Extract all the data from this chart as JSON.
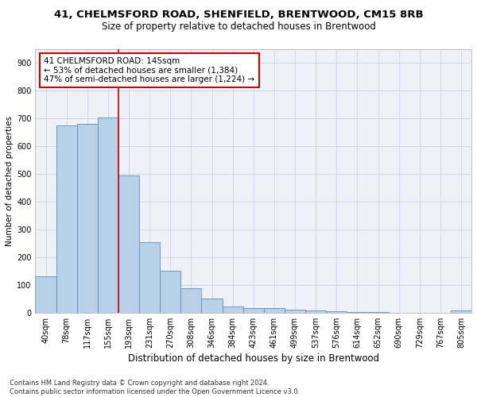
{
  "title_line1": "41, CHELMSFORD ROAD, SHENFIELD, BRENTWOOD, CM15 8RB",
  "title_line2": "Size of property relative to detached houses in Brentwood",
  "xlabel": "Distribution of detached houses by size in Brentwood",
  "ylabel": "Number of detached properties",
  "footer_line1": "Contains HM Land Registry data © Crown copyright and database right 2024.",
  "footer_line2": "Contains public sector information licensed under the Open Government Licence v3.0.",
  "bin_labels": [
    "40sqm",
    "78sqm",
    "117sqm",
    "155sqm",
    "193sqm",
    "231sqm",
    "270sqm",
    "308sqm",
    "346sqm",
    "384sqm",
    "423sqm",
    "461sqm",
    "499sqm",
    "537sqm",
    "576sqm",
    "614sqm",
    "652sqm",
    "690sqm",
    "729sqm",
    "767sqm",
    "805sqm"
  ],
  "bar_values": [
    130,
    675,
    680,
    705,
    495,
    253,
    150,
    88,
    52,
    23,
    18,
    18,
    10,
    8,
    4,
    2,
    2,
    1,
    1,
    0,
    7
  ],
  "bar_color": "#b8d0e8",
  "bar_edge_color": "#5a8fc0",
  "vline_color": "#cc0000",
  "annotation_text": "41 CHELMSFORD ROAD: 145sqm\n← 53% of detached houses are smaller (1,384)\n47% of semi-detached houses are larger (1,224) →",
  "annotation_box_color": "#cc0000",
  "ylim": [
    0,
    950
  ],
  "yticks": [
    0,
    100,
    200,
    300,
    400,
    500,
    600,
    700,
    800,
    900
  ],
  "grid_color": "#d0d8e8",
  "bg_color": "#eef2f8",
  "title1_fontsize": 9.5,
  "title2_fontsize": 8.5,
  "annot_fontsize": 7.5,
  "ylabel_fontsize": 7.5,
  "xlabel_fontsize": 8.5,
  "tick_fontsize": 7.0,
  "footer_fontsize": 6.0
}
